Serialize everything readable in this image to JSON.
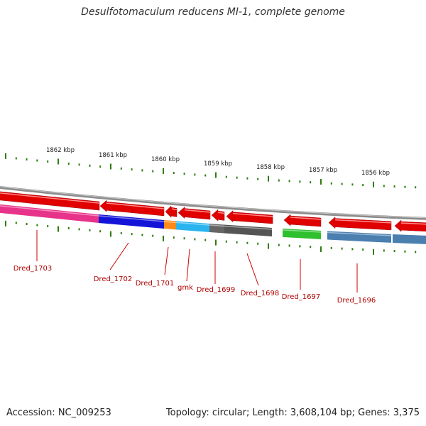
{
  "title": "Desulfotomaculum reducens MI-1, complete genome",
  "footer": {
    "accession": "Accession: NC_009253",
    "summary": "Topology: circular; Length: 3,608,104 bp; Genes: 3,375"
  },
  "ruler": {
    "labels": [
      "1862 kbp",
      "1861 kbp",
      "1860 kbp",
      "1859 kbp",
      "1858 kbp",
      "1857 kbp",
      "1856 kbp"
    ],
    "tick_color": "#2e7d0a"
  },
  "colors": {
    "backbone": "#8c8c8c",
    "cds_arrow": "#e00000",
    "label": "#b00000",
    "label_line": "#d00000"
  },
  "genes": [
    {
      "label": "Dred_1703",
      "color": "#e8338a"
    },
    {
      "label": "Dred_1702",
      "color": "#1414d8"
    },
    {
      "label": "Dred_1701",
      "color": "#ff8a1a"
    },
    {
      "label": "gmk",
      "color": "#2ab4ee"
    },
    {
      "label": "Dred_1699",
      "color": "#666666"
    },
    {
      "label": "Dred_1698",
      "color": "#555555"
    },
    {
      "label": "Dred_1697",
      "color": "#2ec02e"
    },
    {
      "label": "Dred_1696",
      "color": "#4a7fb0"
    }
  ]
}
